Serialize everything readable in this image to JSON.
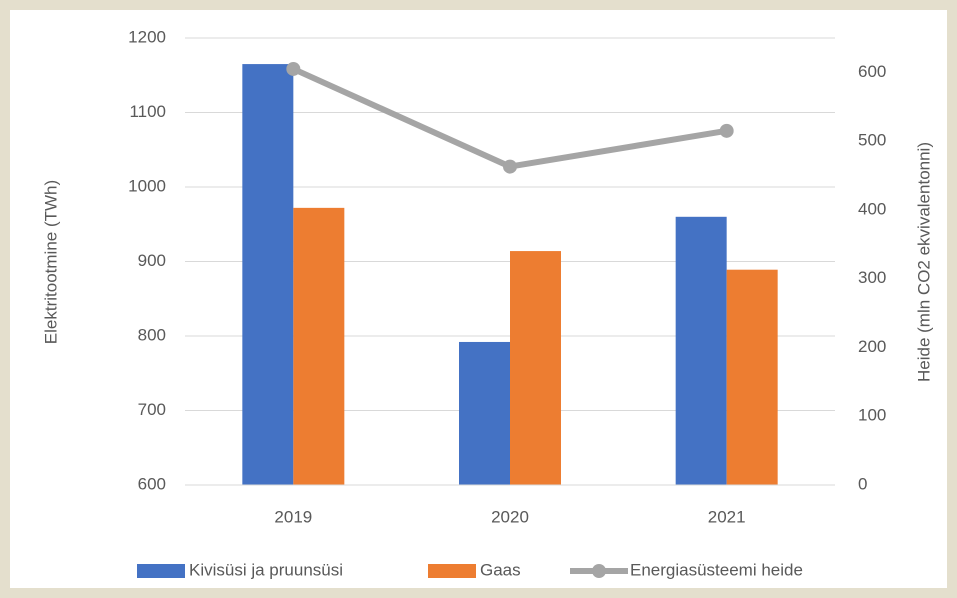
{
  "chart_data": {
    "type": "bar",
    "categories": [
      "2019",
      "2020",
      "2021"
    ],
    "series": [
      {
        "name": "Kivisüsi ja pruunsüsi",
        "color": "#4472c4",
        "values": [
          1165,
          792,
          960
        ]
      },
      {
        "name": "Gaas",
        "color": "#ed7d31",
        "values": [
          972,
          914,
          889
        ]
      },
      {
        "name": "Energiasüsteemi heide",
        "color": "#a5a5a5",
        "type": "line",
        "axis": "y2",
        "values": [
          605,
          463,
          515
        ]
      }
    ],
    "ylabel": "Elektritootmine (TWh)",
    "y2label": "Heide (mln CO2 ekvivalentonni)",
    "ylim": [
      600,
      1200
    ],
    "yticks": [
      600,
      700,
      800,
      900,
      1000,
      1100,
      1200
    ],
    "y2lim": [
      0,
      650
    ],
    "y2ticks": [
      0,
      100,
      200,
      300,
      400,
      500,
      600
    ],
    "grid": true,
    "legend": "bottom"
  }
}
